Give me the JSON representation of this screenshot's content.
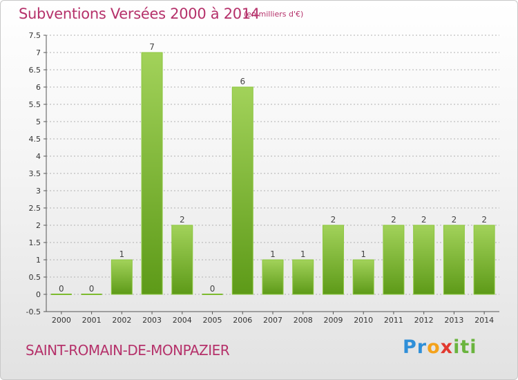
{
  "header": {
    "title": "Subventions Versées 2000 à 2014",
    "unit": "(en milliers d'€)"
  },
  "footer": {
    "commune": "SAINT-ROMAIN-DE-MONPAZIER",
    "logo_parts": [
      "Pr",
      "o",
      "x",
      "iti"
    ]
  },
  "colors": {
    "title": "#b5316a",
    "bar_top": "#a2d25a",
    "bar_bottom": "#5d9a18",
    "grid": "#b0b0b0"
  },
  "chart_data": {
    "type": "bar",
    "title": "Subventions Versées 2000 à 2014",
    "xlabel": "",
    "ylabel": "",
    "categories": [
      "2000",
      "2001",
      "2002",
      "2003",
      "2004",
      "2005",
      "2006",
      "2007",
      "2008",
      "2009",
      "2010",
      "2011",
      "2012",
      "2013",
      "2014"
    ],
    "values": [
      0,
      0,
      1,
      7,
      2,
      0,
      6,
      1,
      1,
      2,
      1,
      2,
      2,
      2,
      2
    ],
    "data_labels": [
      "0",
      "0",
      "1",
      "7",
      "2",
      "0",
      "6",
      "1",
      "1",
      "2",
      "1",
      "2",
      "2",
      "2",
      "2"
    ],
    "ylim": [
      -0.5,
      7.5
    ],
    "yticks": [
      -0.5,
      0,
      0.5,
      1,
      1.5,
      2,
      2.5,
      3,
      3.5,
      4,
      4.5,
      5,
      5.5,
      6,
      6.5,
      7,
      7.5
    ],
    "ytick_labels": [
      "-0.5",
      "0",
      "0.5",
      "1",
      "1.5",
      "2",
      "2.5",
      "3",
      "3.5",
      "4",
      "4.5",
      "5",
      "5.5",
      "6",
      "6.5",
      "7",
      "7.5"
    ],
    "grid": true
  }
}
